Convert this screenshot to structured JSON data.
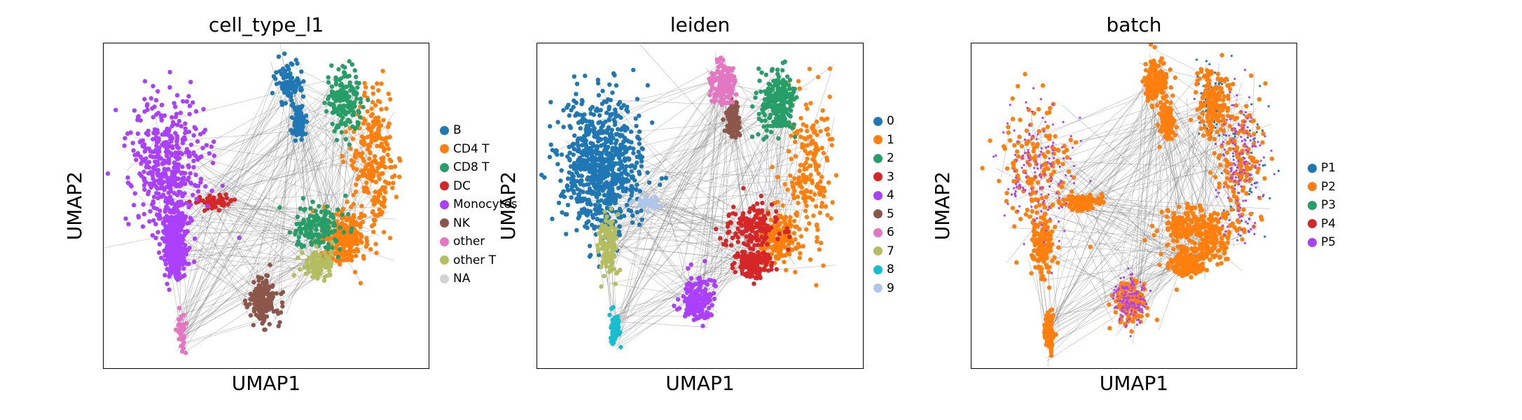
{
  "chart_data": [
    {
      "type": "scatter",
      "title": "cell_type_l1",
      "xlabel": "UMAP1",
      "ylabel": "UMAP2",
      "grid": false,
      "legend_placement": "right",
      "series": [
        {
          "name": "B",
          "color": "#1f77b4"
        },
        {
          "name": "CD4 T",
          "color": "#ff7f0e"
        },
        {
          "name": "CD8 T",
          "color": "#279e68"
        },
        {
          "name": "DC",
          "color": "#d62728"
        },
        {
          "name": "Monocytes",
          "color": "#aa40fc"
        },
        {
          "name": "NK",
          "color": "#8c564b"
        },
        {
          "name": "other",
          "color": "#e377c2"
        },
        {
          "name": "other T",
          "color": "#b5bd61"
        },
        {
          "name": "NA",
          "color": "#d3d3d3"
        }
      ]
    },
    {
      "type": "scatter",
      "title": "leiden",
      "xlabel": "UMAP1",
      "ylabel": "UMAP2",
      "grid": false,
      "legend_placement": "right",
      "series": [
        {
          "name": "0",
          "color": "#1f77b4"
        },
        {
          "name": "1",
          "color": "#ff7f0e"
        },
        {
          "name": "2",
          "color": "#279e68"
        },
        {
          "name": "3",
          "color": "#d62728"
        },
        {
          "name": "4",
          "color": "#aa40fc"
        },
        {
          "name": "5",
          "color": "#8c564b"
        },
        {
          "name": "6",
          "color": "#e377c2"
        },
        {
          "name": "7",
          "color": "#b5bd61"
        },
        {
          "name": "8",
          "color": "#17becf"
        },
        {
          "name": "9",
          "color": "#aec7e8"
        }
      ]
    },
    {
      "type": "scatter",
      "title": "batch",
      "xlabel": "UMAP1",
      "ylabel": "UMAP2",
      "grid": false,
      "legend_placement": "right",
      "series": [
        {
          "name": "P1",
          "color": "#1f77b4"
        },
        {
          "name": "P2",
          "color": "#ff7f0e"
        },
        {
          "name": "P3",
          "color": "#279e68"
        },
        {
          "name": "P4",
          "color": "#d62728"
        },
        {
          "name": "P5",
          "color": "#aa40fc"
        }
      ]
    }
  ],
  "edge_color": "#808080"
}
